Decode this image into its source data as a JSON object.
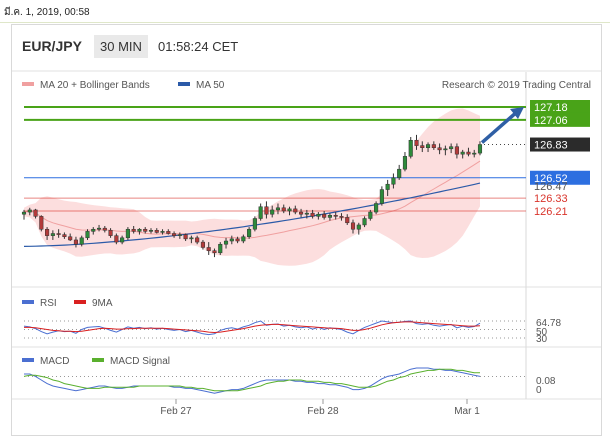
{
  "timestamp": "มี.ค. 1, 2019, 00:58",
  "header": {
    "pair": "EUR/JPY",
    "timeframe": "30 MIN",
    "time": "01:58:24 CET"
  },
  "legend": {
    "ma20": "MA 20 + Bollinger Bands",
    "ma50": "MA 50",
    "copyright": "Research © 2019 Trading Central",
    "rsi": "RSI",
    "rsi_ma": "9MA",
    "macd": "MACD",
    "macd_signal": "MACD Signal"
  },
  "colors": {
    "up": "#2e8b2e",
    "down": "#d23c3c",
    "candle_up": "#2d8a3a",
    "candle_down": "#b33a3a",
    "band": "#fbd3d3",
    "ma20": "#f0a0a0",
    "ma50": "#2b5aa8",
    "target": "#49a318",
    "pivot": "#2d6fe0",
    "support": "#d9342b",
    "last": "#222222",
    "rsi": "#4b6fd1",
    "rsi_ma": "#d92020",
    "macd": "#4b6fd1",
    "macd_signal": "#5ab02e"
  },
  "chart_data": [
    {
      "type": "candlestick",
      "title": "EUR/JPY",
      "x_ticks": [
        "Feb 27",
        "Feb 28",
        "Mar 1"
      ],
      "price_levels": [
        {
          "name": "target-2",
          "value": 127.18,
          "label": "127.18",
          "kind": "resistance"
        },
        {
          "name": "target-1",
          "value": 127.06,
          "label": "127.06",
          "kind": "resistance"
        },
        {
          "name": "last",
          "value": 126.83,
          "label": "126.83",
          "kind": "last"
        },
        {
          "name": "pivot",
          "value": 126.52,
          "label": "126.52",
          "kind": "pivot"
        },
        {
          "name": "ma50",
          "value": 126.47,
          "label": "126.47",
          "kind": "ma"
        },
        {
          "name": "support-1",
          "value": 126.33,
          "label": "126.33",
          "kind": "support"
        },
        {
          "name": "support-2",
          "value": 126.21,
          "label": "126.21",
          "kind": "support"
        }
      ],
      "candles": [
        [
          126.18,
          126.22,
          126.13,
          126.2
        ],
        [
          126.2,
          126.24,
          126.17,
          126.22
        ],
        [
          126.22,
          126.23,
          126.14,
          126.16
        ],
        [
          126.16,
          126.17,
          126.02,
          126.04
        ],
        [
          126.04,
          126.06,
          125.94,
          125.98
        ],
        [
          125.98,
          126.03,
          125.94,
          126.0
        ],
        [
          126.0,
          126.04,
          125.96,
          125.99
        ],
        [
          125.99,
          126.01,
          125.95,
          125.97
        ],
        [
          125.97,
          126.0,
          125.93,
          125.94
        ],
        [
          125.94,
          125.97,
          125.87,
          125.9
        ],
        [
          125.9,
          125.98,
          125.88,
          125.96
        ],
        [
          125.96,
          126.04,
          125.94,
          126.02
        ],
        [
          126.02,
          126.06,
          125.99,
          126.04
        ],
        [
          126.04,
          126.08,
          126.02,
          126.05
        ],
        [
          126.05,
          126.07,
          126.01,
          126.03
        ],
        [
          126.03,
          126.05,
          125.96,
          125.98
        ],
        [
          125.98,
          126.0,
          125.9,
          125.92
        ],
        [
          125.92,
          125.98,
          125.9,
          125.96
        ],
        [
          125.96,
          126.06,
          125.94,
          126.04
        ],
        [
          126.04,
          126.07,
          126.0,
          126.02
        ],
        [
          126.02,
          126.05,
          125.99,
          126.04
        ],
        [
          126.04,
          126.06,
          126.0,
          126.02
        ],
        [
          126.02,
          126.05,
          126.0,
          126.03
        ],
        [
          126.03,
          126.05,
          126.0,
          126.01
        ],
        [
          126.01,
          126.04,
          125.99,
          126.02
        ],
        [
          126.02,
          126.04,
          125.99,
          126.0
        ],
        [
          126.0,
          126.02,
          125.96,
          125.98
        ],
        [
          125.98,
          126.01,
          125.95,
          125.99
        ],
        [
          125.99,
          126.0,
          125.93,
          125.95
        ],
        [
          125.95,
          125.98,
          125.91,
          125.96
        ],
        [
          125.96,
          125.98,
          125.9,
          125.92
        ],
        [
          125.92,
          125.94,
          125.85,
          125.87
        ],
        [
          125.87,
          125.92,
          125.8,
          125.84
        ],
        [
          125.84,
          125.86,
          125.78,
          125.82
        ],
        [
          125.82,
          125.92,
          125.8,
          125.9
        ],
        [
          125.9,
          125.96,
          125.86,
          125.93
        ],
        [
          125.93,
          125.98,
          125.9,
          125.95
        ],
        [
          125.95,
          125.97,
          125.91,
          125.93
        ],
        [
          125.93,
          125.99,
          125.91,
          125.97
        ],
        [
          125.97,
          126.06,
          125.95,
          126.04
        ],
        [
          126.04,
          126.16,
          126.02,
          126.14
        ],
        [
          126.14,
          126.28,
          126.12,
          126.25
        ],
        [
          126.25,
          126.3,
          126.14,
          126.18
        ],
        [
          126.18,
          126.26,
          126.15,
          126.22
        ],
        [
          126.22,
          126.28,
          126.18,
          126.24
        ],
        [
          126.24,
          126.27,
          126.19,
          126.21
        ],
        [
          126.21,
          126.25,
          126.17,
          126.23
        ],
        [
          126.23,
          126.26,
          126.18,
          126.2
        ],
        [
          126.2,
          126.23,
          126.15,
          126.18
        ],
        [
          126.18,
          126.22,
          126.14,
          126.19
        ],
        [
          126.19,
          126.22,
          126.14,
          126.16
        ],
        [
          126.16,
          126.2,
          126.13,
          126.18
        ],
        [
          126.18,
          126.21,
          126.13,
          126.15
        ],
        [
          126.15,
          126.19,
          126.12,
          126.17
        ],
        [
          126.17,
          126.2,
          126.13,
          126.16
        ],
        [
          126.16,
          126.19,
          126.12,
          126.15
        ],
        [
          126.15,
          126.18,
          126.08,
          126.1
        ],
        [
          126.1,
          126.13,
          126.0,
          126.04
        ],
        [
          126.04,
          126.1,
          125.99,
          126.08
        ],
        [
          126.08,
          126.16,
          126.06,
          126.14
        ],
        [
          126.14,
          126.22,
          126.12,
          126.2
        ],
        [
          126.2,
          126.3,
          126.18,
          126.28
        ],
        [
          126.28,
          126.44,
          126.26,
          126.41
        ],
        [
          126.41,
          126.5,
          126.35,
          126.46
        ],
        [
          126.46,
          126.56,
          126.42,
          126.52
        ],
        [
          126.52,
          126.64,
          126.5,
          126.6
        ],
        [
          126.6,
          126.76,
          126.58,
          126.72
        ],
        [
          126.72,
          126.9,
          126.7,
          126.87
        ],
        [
          126.87,
          126.92,
          126.78,
          126.82
        ],
        [
          126.82,
          126.86,
          126.76,
          126.8
        ],
        [
          126.8,
          126.85,
          126.76,
          126.83
        ],
        [
          126.83,
          126.86,
          126.78,
          126.8
        ],
        [
          126.8,
          126.84,
          126.74,
          126.78
        ],
        [
          126.78,
          126.82,
          126.73,
          126.79
        ],
        [
          126.79,
          126.84,
          126.75,
          126.81
        ],
        [
          126.81,
          126.84,
          126.7,
          126.74
        ],
        [
          126.74,
          126.78,
          126.7,
          126.76
        ],
        [
          126.76,
          126.8,
          126.72,
          126.74
        ],
        [
          126.74,
          126.78,
          126.71,
          126.75
        ],
        [
          126.75,
          126.86,
          126.73,
          126.83
        ]
      ],
      "ma50": {
        "start": 125.88,
        "end": 126.47
      },
      "forecast_arrow": {
        "from": 126.83,
        "to": 127.18
      }
    },
    {
      "type": "line",
      "title": "RSI",
      "reference_levels": [
        70,
        50,
        30
      ],
      "last_value": 64.78,
      "last_label": "64.78",
      "level_labels": [
        "50",
        "30"
      ],
      "series": [
        {
          "name": "RSI",
          "values": [
            58,
            56,
            52,
            45,
            40,
            44,
            47,
            45,
            46,
            41,
            50,
            55,
            56,
            57,
            53,
            48,
            44,
            50,
            56,
            53,
            55,
            52,
            54,
            51,
            53,
            50,
            48,
            50,
            45,
            48,
            44,
            40,
            38,
            40,
            48,
            52,
            54,
            51,
            56,
            60,
            66,
            70,
            60,
            62,
            63,
            58,
            60,
            56,
            54,
            56,
            51,
            55,
            50,
            54,
            52,
            50,
            44,
            40,
            48,
            55,
            60,
            65,
            70,
            68,
            66,
            67,
            69,
            70,
            64,
            62,
            64,
            60,
            58,
            60,
            62,
            54,
            58,
            55,
            57,
            64.78
          ]
        },
        {
          "name": "9MA",
          "values": [
            55,
            55,
            54,
            52,
            50,
            48,
            47,
            46,
            46,
            45,
            46,
            48,
            50,
            52,
            53,
            52,
            51,
            51,
            52,
            52,
            53,
            53,
            53,
            53,
            53,
            52,
            51,
            50,
            49,
            48,
            47,
            46,
            44,
            43,
            44,
            46,
            48,
            50,
            52,
            55,
            58,
            60,
            61,
            62,
            62,
            61,
            60,
            59,
            58,
            57,
            56,
            55,
            54,
            53,
            53,
            52,
            50,
            48,
            48,
            50,
            53,
            57,
            61,
            64,
            66,
            67,
            68,
            68,
            67,
            66,
            65,
            64,
            63,
            62,
            61,
            60,
            59,
            58,
            58,
            59
          ]
        }
      ]
    },
    {
      "type": "line",
      "title": "MACD",
      "last_value": 0.08,
      "last_label": "0.08",
      "zero_label": "0",
      "series": [
        {
          "name": "MACD",
          "values": [
            0.1,
            0.1,
            0.08,
            0.05,
            0.02,
            0.0,
            -0.01,
            -0.02,
            -0.03,
            -0.04,
            -0.03,
            -0.02,
            -0.01,
            0.0,
            0.0,
            -0.01,
            -0.02,
            -0.02,
            -0.01,
            0.0,
            0.0,
            0.0,
            0.0,
            0.0,
            0.0,
            0.0,
            -0.01,
            -0.01,
            -0.02,
            -0.02,
            -0.03,
            -0.04,
            -0.05,
            -0.06,
            -0.05,
            -0.04,
            -0.03,
            -0.03,
            -0.02,
            0.0,
            0.02,
            0.04,
            0.05,
            0.05,
            0.05,
            0.05,
            0.05,
            0.04,
            0.04,
            0.03,
            0.03,
            0.02,
            0.02,
            0.01,
            0.01,
            0.0,
            -0.01,
            -0.03,
            -0.03,
            -0.02,
            0.0,
            0.03,
            0.06,
            0.08,
            0.09,
            0.1,
            0.12,
            0.14,
            0.15,
            0.15,
            0.15,
            0.14,
            0.14,
            0.13,
            0.13,
            0.12,
            0.11,
            0.1,
            0.09,
            0.08
          ]
        },
        {
          "name": "MACD Signal",
          "values": [
            0.08,
            0.09,
            0.09,
            0.08,
            0.07,
            0.05,
            0.04,
            0.02,
            0.01,
            0.0,
            -0.01,
            -0.02,
            -0.02,
            -0.02,
            -0.01,
            -0.01,
            -0.01,
            -0.01,
            -0.01,
            -0.01,
            0.0,
            0.0,
            0.0,
            0.0,
            0.0,
            0.0,
            0.0,
            0.0,
            -0.01,
            -0.01,
            -0.02,
            -0.02,
            -0.03,
            -0.04,
            -0.04,
            -0.04,
            -0.04,
            -0.04,
            -0.03,
            -0.02,
            -0.01,
            0.0,
            0.02,
            0.03,
            0.04,
            0.04,
            0.05,
            0.05,
            0.05,
            0.04,
            0.04,
            0.04,
            0.03,
            0.03,
            0.02,
            0.02,
            0.01,
            0.0,
            -0.01,
            -0.01,
            -0.01,
            0.0,
            0.02,
            0.04,
            0.05,
            0.07,
            0.08,
            0.1,
            0.11,
            0.12,
            0.13,
            0.13,
            0.14,
            0.14,
            0.14,
            0.13,
            0.13,
            0.12,
            0.11,
            0.11
          ]
        }
      ]
    }
  ]
}
